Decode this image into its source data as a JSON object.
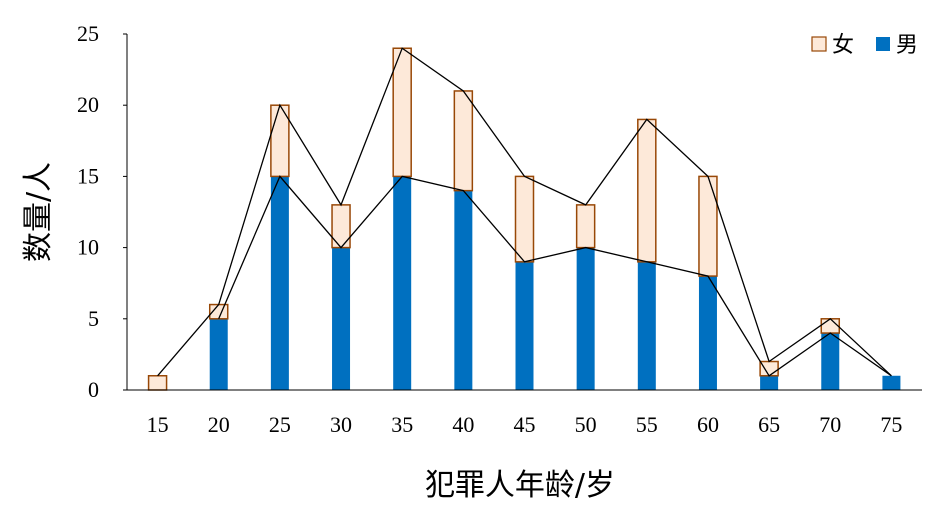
{
  "chart_data": {
    "type": "bar",
    "stacked": true,
    "categories": [
      "15",
      "20",
      "25",
      "30",
      "35",
      "40",
      "45",
      "50",
      "55",
      "60",
      "65",
      "70",
      "75"
    ],
    "series": [
      {
        "name": "男",
        "values": [
          0,
          5,
          15,
          10,
          15,
          14,
          9,
          10,
          9,
          8,
          1,
          4,
          1
        ],
        "color": "#0070c0"
      },
      {
        "name": "女",
        "values": [
          1,
          1,
          5,
          3,
          9,
          7,
          6,
          3,
          10,
          7,
          1,
          1,
          0
        ],
        "color": "#fde9d9",
        "stroke": "#984807"
      }
    ],
    "xlabel": "犯罪人年龄/岁",
    "ylabel": "数量/人",
    "ylim": [
      0,
      25
    ],
    "yticks": [
      0,
      5,
      10,
      15,
      20,
      25
    ],
    "grid": false,
    "legend_position": "top-right",
    "legend_order": [
      "女",
      "男"
    ],
    "connector_lines": true
  }
}
